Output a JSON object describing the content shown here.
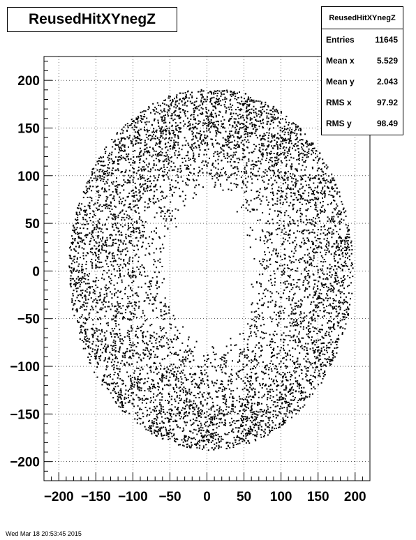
{
  "chart_data": {
    "type": "scatter",
    "title": "ReusedHitXYnegZ",
    "xlim": [
      -220,
      220
    ],
    "ylim": [
      -220,
      225
    ],
    "x_ticks": [
      -200,
      -150,
      -100,
      -50,
      0,
      50,
      100,
      150,
      200
    ],
    "y_ticks": [
      -200,
      -150,
      -100,
      -50,
      0,
      50,
      100,
      150,
      200
    ],
    "x_tick_labels": [
      "−200",
      "−150",
      "−100",
      "−50",
      "0",
      "50",
      "100",
      "150",
      "200"
    ],
    "y_tick_labels": [
      "−200",
      "−150",
      "−100",
      "−50",
      "0",
      "50",
      "100",
      "150",
      "200"
    ],
    "grid": true,
    "xlabel": "",
    "ylabel": "",
    "point_color": "#000000",
    "distribution": {
      "shape": "annulus",
      "center": [
        5.5,
        2.0
      ],
      "inner_radius": [
        52,
        80
      ],
      "outer_radius": [
        192,
        190
      ]
    },
    "stats": {
      "name": "ReusedHitXYnegZ",
      "rows": [
        {
          "label": "Entries",
          "value": "11645"
        },
        {
          "label": "Mean x",
          "value": "5.529"
        },
        {
          "label": "Mean y",
          "value": "2.043"
        },
        {
          "label": "RMS x",
          "value": "97.92"
        },
        {
          "label": "RMS y",
          "value": "98.49"
        }
      ]
    }
  },
  "footer": "Wed Mar 18 20:53:45 2015"
}
